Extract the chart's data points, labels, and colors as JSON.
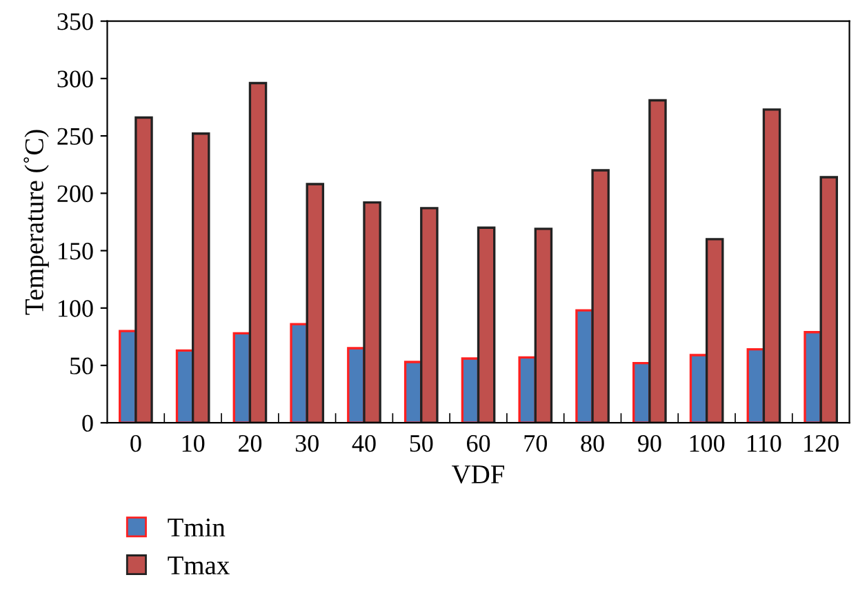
{
  "chart_data": {
    "type": "bar",
    "xlabel": "VDF",
    "ylabel": "Temperature (˚C)",
    "categories": [
      "0",
      "10",
      "20",
      "30",
      "40",
      "50",
      "60",
      "70",
      "80",
      "90",
      "100",
      "110",
      "120"
    ],
    "series": [
      {
        "name": "Tmin",
        "color": "#4a7ebb",
        "values": [
          80,
          63,
          78,
          86,
          65,
          53,
          56,
          57,
          98,
          52,
          59,
          64,
          79
        ]
      },
      {
        "name": "Tmax",
        "color": "#c0504d",
        "values": [
          266,
          252,
          296,
          208,
          192,
          187,
          170,
          169,
          220,
          281,
          160,
          273,
          214
        ]
      }
    ],
    "ylim": [
      0,
      350
    ],
    "yticks": [
      0,
      50,
      100,
      150,
      200,
      250,
      300,
      350
    ],
    "grid": false,
    "legend": "bottom left"
  }
}
